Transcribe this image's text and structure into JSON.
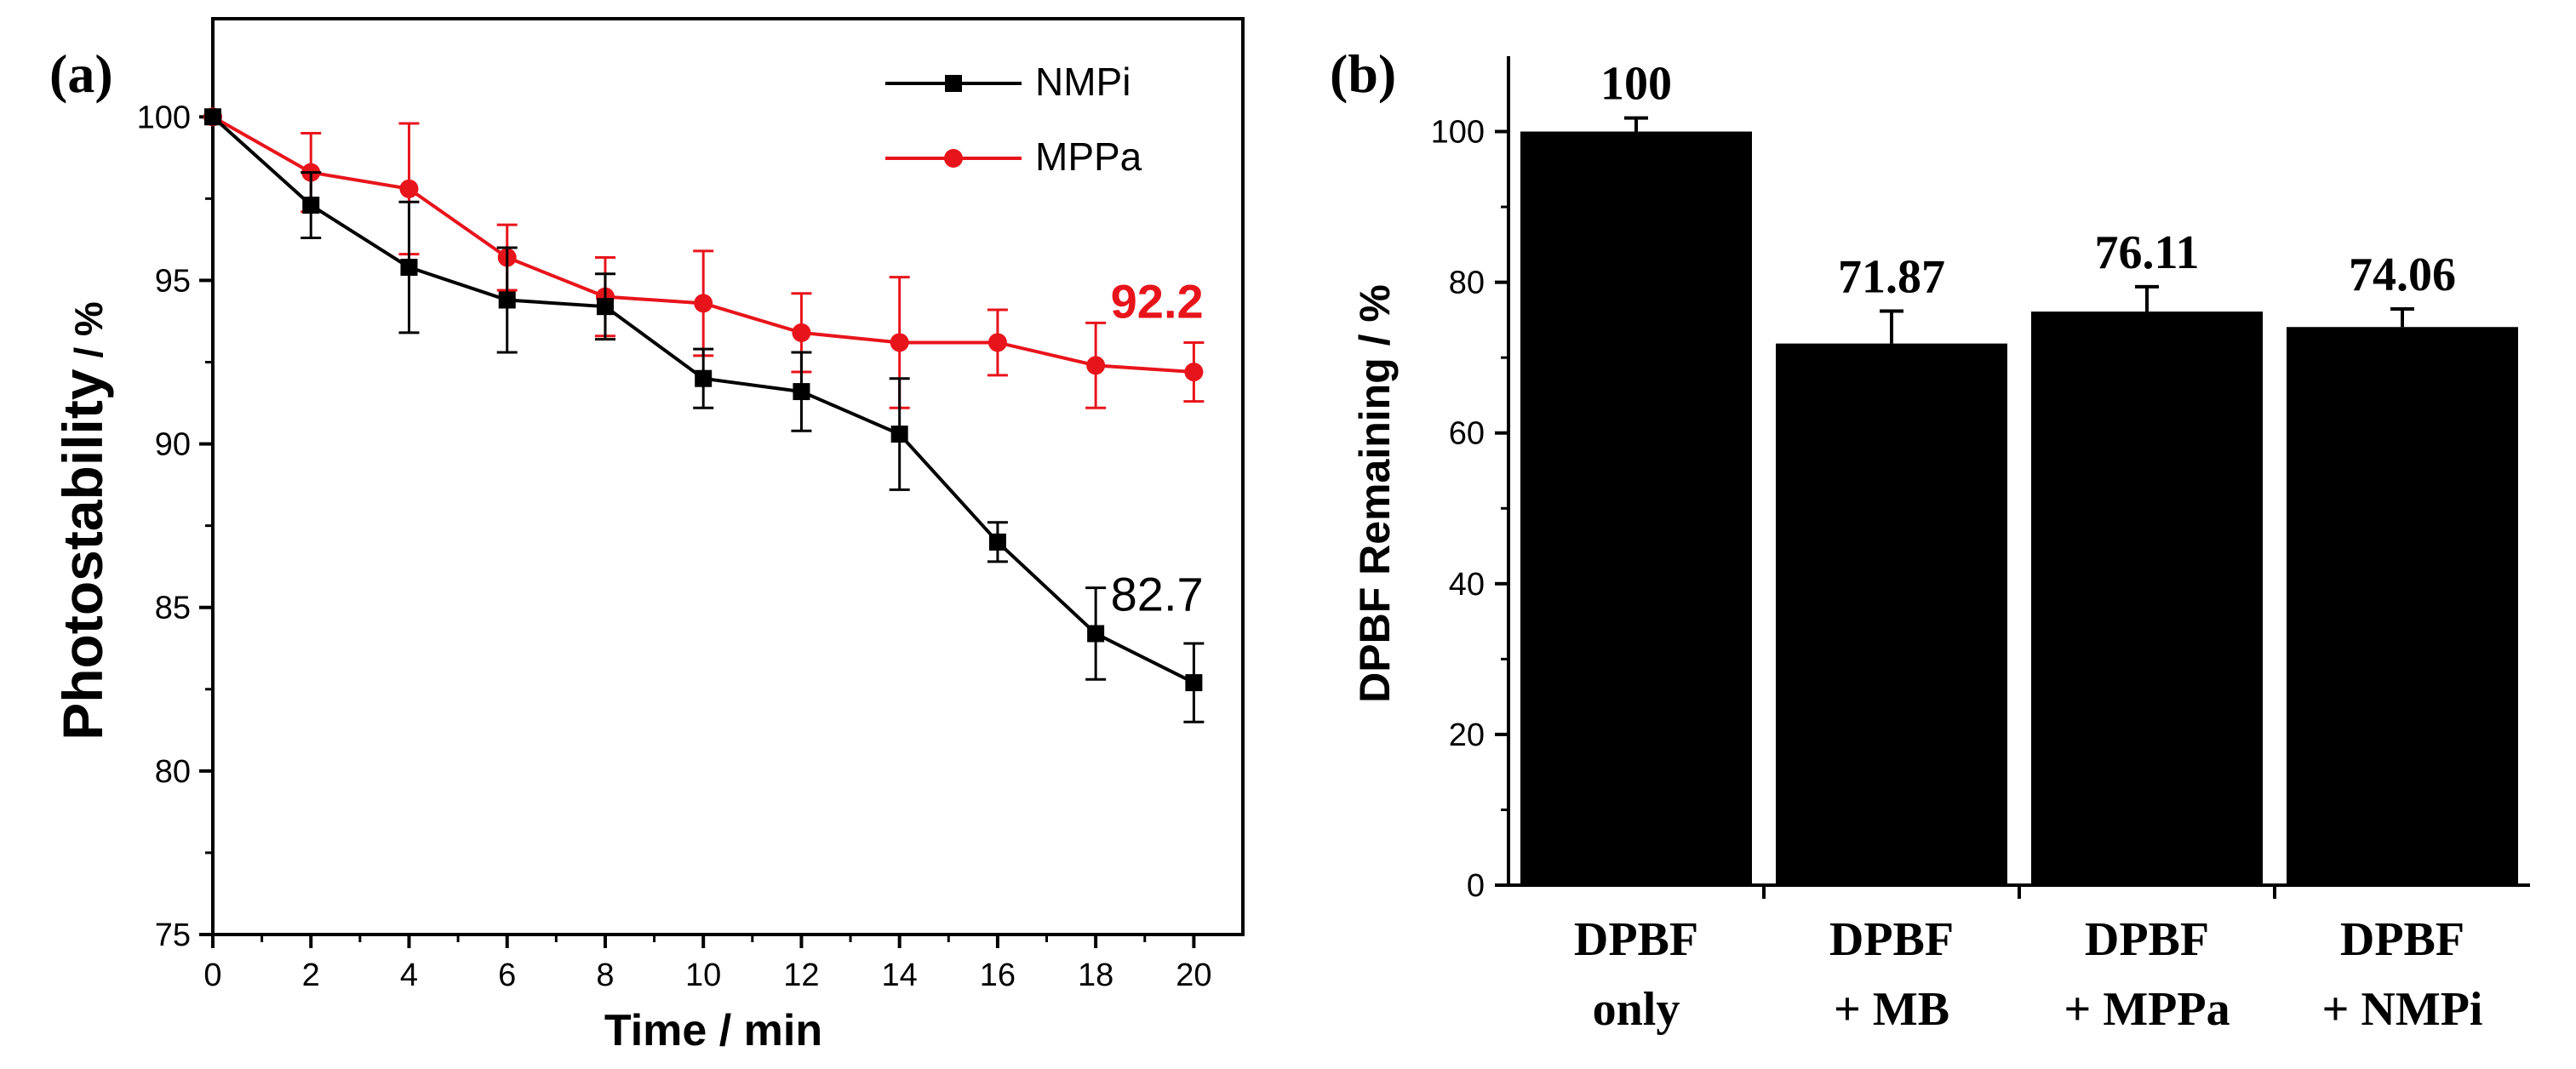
{
  "colors": {
    "series_black": "#000000",
    "series_red": "#e8141b",
    "axis": "#000000",
    "background": "#ffffff"
  },
  "chart_data": [
    {
      "panel": "(a)",
      "type": "line",
      "xlabel": "Time / min",
      "ylabel_main": "Photostability",
      "ylabel_unit": " / %",
      "xlim": [
        0,
        21
      ],
      "ylim": [
        75,
        103
      ],
      "xticks": [
        0,
        2,
        4,
        6,
        8,
        10,
        12,
        14,
        16,
        18,
        20
      ],
      "yticks": [
        75,
        80,
        85,
        90,
        95,
        100
      ],
      "legend_position": "top-right",
      "series": [
        {
          "name": "NMPi",
          "color": "#000000",
          "marker": "square",
          "x": [
            0,
            2,
            4,
            6,
            8,
            10,
            12,
            14,
            16,
            18,
            20
          ],
          "y": [
            100,
            97.3,
            95.4,
            94.4,
            94.2,
            92.0,
            91.6,
            90.3,
            87.0,
            84.2,
            82.7
          ],
          "err": [
            0,
            1.0,
            2.0,
            1.6,
            1.0,
            0.9,
            1.2,
            1.7,
            0.6,
            1.4,
            1.2
          ],
          "end_label": "82.7"
        },
        {
          "name": "MPPa",
          "color": "#e8141b",
          "marker": "circle",
          "x": [
            0,
            2,
            4,
            6,
            8,
            10,
            12,
            14,
            16,
            18,
            20
          ],
          "y": [
            100,
            98.3,
            97.8,
            95.7,
            94.5,
            94.3,
            93.4,
            93.1,
            93.1,
            92.4,
            92.2
          ],
          "err": [
            0,
            1.2,
            2.0,
            1.0,
            1.2,
            1.6,
            1.2,
            2.0,
            1.0,
            1.3,
            0.9
          ],
          "end_label": "92.2"
        }
      ]
    },
    {
      "panel": "(b)",
      "type": "bar",
      "ylabel": "DPBF Remaining / %",
      "ylim": [
        0,
        110
      ],
      "yticks": [
        0,
        20,
        40,
        60,
        80,
        100
      ],
      "categories": [
        {
          "line1": "DPBF",
          "line2": "only"
        },
        {
          "line1": "DPBF",
          "line2": "+ MB"
        },
        {
          "line1": "DPBF",
          "line2": "+ MPPa"
        },
        {
          "line1": "DPBF",
          "line2": "+ NMPi"
        }
      ],
      "values": [
        100,
        71.87,
        76.11,
        74.06
      ],
      "errors": [
        1.8,
        4.3,
        3.3,
        2.4
      ],
      "value_labels": [
        "100",
        "71.87",
        "76.11",
        "74.06"
      ]
    }
  ]
}
